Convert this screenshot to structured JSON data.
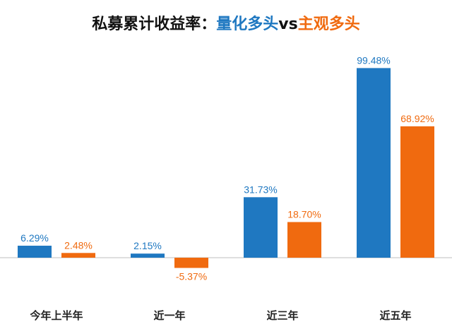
{
  "title": {
    "prefix": "私募累计收益率：",
    "series_a": "量化多头",
    "vs": "vs",
    "series_b": "主观多头"
  },
  "colors": {
    "quant": "#1F78C1",
    "subjective": "#F06A0F",
    "axis": "#BFBFBF",
    "title": "#111111"
  },
  "chart_data": {
    "type": "bar",
    "title": "私募累计收益率：量化多头vs主观多头",
    "categories": [
      "今年上半年",
      "近一年",
      "近三年",
      "近五年"
    ],
    "series": [
      {
        "values": [
          6.29,
          2.15,
          31.73,
          99.48
        ],
        "labels": [
          "6.29%",
          "2.15%",
          "31.73%",
          "99.48%"
        ],
        "color": "#1F78C1"
      },
      {
        "values": [
          2.48,
          -5.37,
          18.7,
          68.92
        ],
        "labels": [
          "2.48%",
          "-5.37%",
          "18.70%",
          "68.92%"
        ],
        "color": "#F06A0F"
      }
    ],
    "unit": "%",
    "ylim": [
      -10,
      100
    ],
    "grid": false,
    "legend": "none"
  }
}
